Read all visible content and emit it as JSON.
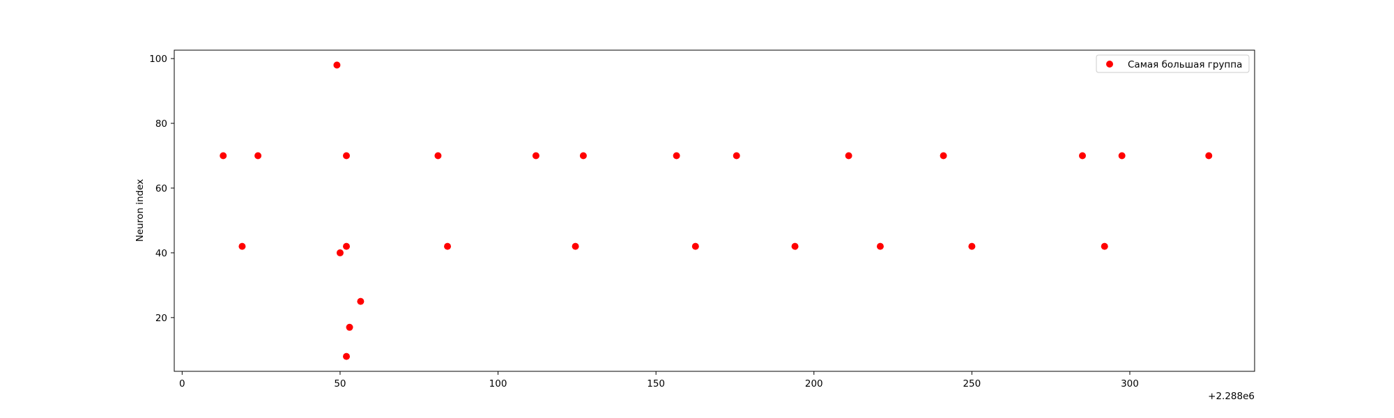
{
  "chart_data": {
    "type": "scatter",
    "title": "",
    "xlabel": "",
    "ylabel": "Neuron index",
    "x_offset_label": "+2.288e6",
    "xlim": [
      -2.5,
      339.5
    ],
    "ylim": [
      3.4,
      102.6
    ],
    "xticks": [
      0,
      50,
      100,
      150,
      200,
      250,
      300
    ],
    "yticks": [
      20,
      40,
      60,
      80,
      100
    ],
    "grid": false,
    "legend_position": "top-right",
    "colors": {
      "marker": "#ff0000",
      "axes": "#000000",
      "background": "#ffffff"
    },
    "series": [
      {
        "name": "Самая большая группа",
        "color": "#ff0000",
        "points": [
          {
            "x": 13,
            "y": 70
          },
          {
            "x": 19,
            "y": 42
          },
          {
            "x": 24,
            "y": 70
          },
          {
            "x": 49,
            "y": 98
          },
          {
            "x": 50,
            "y": 40
          },
          {
            "x": 52,
            "y": 70
          },
          {
            "x": 52,
            "y": 42
          },
          {
            "x": 52,
            "y": 8
          },
          {
            "x": 53,
            "y": 17
          },
          {
            "x": 56.5,
            "y": 25
          },
          {
            "x": 81,
            "y": 70
          },
          {
            "x": 84,
            "y": 42
          },
          {
            "x": 112,
            "y": 70
          },
          {
            "x": 124.5,
            "y": 42
          },
          {
            "x": 127,
            "y": 70
          },
          {
            "x": 156.5,
            "y": 70
          },
          {
            "x": 162.5,
            "y": 42
          },
          {
            "x": 175.5,
            "y": 70
          },
          {
            "x": 194,
            "y": 42
          },
          {
            "x": 211,
            "y": 70
          },
          {
            "x": 221,
            "y": 42
          },
          {
            "x": 241,
            "y": 70
          },
          {
            "x": 250,
            "y": 42
          },
          {
            "x": 285,
            "y": 70
          },
          {
            "x": 292,
            "y": 42
          },
          {
            "x": 297.5,
            "y": 70
          },
          {
            "x": 325,
            "y": 70
          }
        ]
      }
    ]
  }
}
